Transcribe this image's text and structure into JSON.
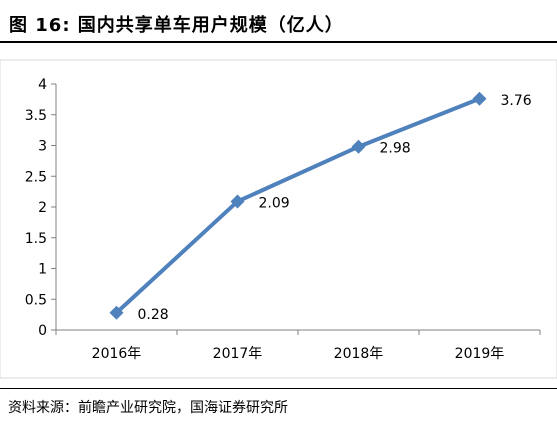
{
  "title": "图 16:  国内共享单车用户规模（亿人）",
  "source": "资料来源：前瞻产业研究院，国海证券研究所",
  "chart_data": {
    "type": "line",
    "categories": [
      "2016年",
      "2017年",
      "2018年",
      "2019年"
    ],
    "series": [
      {
        "values": [
          0.28,
          2.09,
          2.98,
          3.76
        ],
        "color": "#4f81bd",
        "marker": "diamond"
      }
    ],
    "data_labels": [
      "0.28",
      "2.09",
      "2.98",
      "3.76"
    ],
    "ylim": [
      0,
      4
    ],
    "yticks": [
      "0",
      "0.5",
      "1",
      "1.5",
      "2",
      "2.5",
      "3",
      "3.5",
      "4"
    ],
    "grid": false,
    "legend": "none"
  }
}
